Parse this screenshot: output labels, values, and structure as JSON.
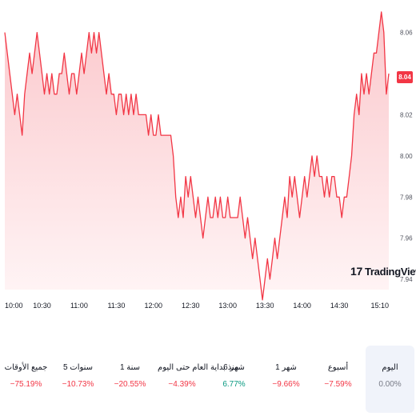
{
  "chart_data": {
    "type": "area",
    "x_tick_labels": [
      "10:00",
      "10:30",
      "11:00",
      "11:30",
      "12:00",
      "12:30",
      "13:00",
      "13:30",
      "14:00",
      "14:30",
      "15:10"
    ],
    "y_tick_labels": [
      "7.94",
      "7.96",
      "7.98",
      "8.00",
      "8.02",
      "8.04",
      "8.06"
    ],
    "ylim": [
      7.935,
      8.068
    ],
    "x_range_minutes": [
      600,
      910
    ],
    "line_color": "#f23645",
    "fill_top_color": "#fbc8cc",
    "fill_bottom_color": "#fff5f6",
    "last_price_label": "8.04",
    "points": [
      [
        600,
        8.06
      ],
      [
        602,
        8.05
      ],
      [
        604,
        8.04
      ],
      [
        606,
        8.03
      ],
      [
        608,
        8.02
      ],
      [
        610,
        8.03
      ],
      [
        612,
        8.02
      ],
      [
        614,
        8.01
      ],
      [
        616,
        8.03
      ],
      [
        618,
        8.04
      ],
      [
        620,
        8.05
      ],
      [
        622,
        8.04
      ],
      [
        624,
        8.05
      ],
      [
        626,
        8.06
      ],
      [
        628,
        8.05
      ],
      [
        630,
        8.04
      ],
      [
        632,
        8.03
      ],
      [
        634,
        8.04
      ],
      [
        636,
        8.03
      ],
      [
        638,
        8.04
      ],
      [
        640,
        8.03
      ],
      [
        642,
        8.03
      ],
      [
        644,
        8.04
      ],
      [
        646,
        8.04
      ],
      [
        648,
        8.05
      ],
      [
        650,
        8.04
      ],
      [
        652,
        8.03
      ],
      [
        654,
        8.04
      ],
      [
        656,
        8.04
      ],
      [
        658,
        8.03
      ],
      [
        660,
        8.04
      ],
      [
        662,
        8.05
      ],
      [
        664,
        8.04
      ],
      [
        666,
        8.05
      ],
      [
        668,
        8.06
      ],
      [
        670,
        8.05
      ],
      [
        672,
        8.06
      ],
      [
        674,
        8.05
      ],
      [
        676,
        8.06
      ],
      [
        678,
        8.05
      ],
      [
        680,
        8.04
      ],
      [
        682,
        8.03
      ],
      [
        684,
        8.04
      ],
      [
        686,
        8.03
      ],
      [
        688,
        8.03
      ],
      [
        690,
        8.02
      ],
      [
        692,
        8.03
      ],
      [
        694,
        8.03
      ],
      [
        696,
        8.02
      ],
      [
        698,
        8.03
      ],
      [
        700,
        8.02
      ],
      [
        702,
        8.03
      ],
      [
        704,
        8.02
      ],
      [
        706,
        8.03
      ],
      [
        708,
        8.02
      ],
      [
        710,
        8.02
      ],
      [
        712,
        8.02
      ],
      [
        714,
        8.02
      ],
      [
        716,
        8.01
      ],
      [
        718,
        8.02
      ],
      [
        720,
        8.01
      ],
      [
        722,
        8.01
      ],
      [
        724,
        8.02
      ],
      [
        726,
        8.01
      ],
      [
        728,
        8.01
      ],
      [
        730,
        8.01
      ],
      [
        732,
        8.01
      ],
      [
        734,
        8.01
      ],
      [
        736,
        8.0
      ],
      [
        738,
        7.98
      ],
      [
        740,
        7.97
      ],
      [
        742,
        7.98
      ],
      [
        744,
        7.97
      ],
      [
        746,
        7.99
      ],
      [
        748,
        7.98
      ],
      [
        750,
        7.99
      ],
      [
        752,
        7.98
      ],
      [
        754,
        7.97
      ],
      [
        756,
        7.98
      ],
      [
        758,
        7.97
      ],
      [
        760,
        7.96
      ],
      [
        762,
        7.97
      ],
      [
        764,
        7.98
      ],
      [
        766,
        7.97
      ],
      [
        768,
        7.97
      ],
      [
        770,
        7.98
      ],
      [
        772,
        7.97
      ],
      [
        774,
        7.98
      ],
      [
        776,
        7.97
      ],
      [
        778,
        7.97
      ],
      [
        780,
        7.98
      ],
      [
        782,
        7.97
      ],
      [
        784,
        7.97
      ],
      [
        786,
        7.97
      ],
      [
        788,
        7.97
      ],
      [
        790,
        7.98
      ],
      [
        792,
        7.97
      ],
      [
        794,
        7.96
      ],
      [
        796,
        7.97
      ],
      [
        798,
        7.96
      ],
      [
        800,
        7.95
      ],
      [
        802,
        7.96
      ],
      [
        804,
        7.95
      ],
      [
        806,
        7.94
      ],
      [
        808,
        7.93
      ],
      [
        810,
        7.94
      ],
      [
        812,
        7.95
      ],
      [
        814,
        7.94
      ],
      [
        816,
        7.95
      ],
      [
        818,
        7.96
      ],
      [
        820,
        7.95
      ],
      [
        822,
        7.96
      ],
      [
        824,
        7.97
      ],
      [
        826,
        7.98
      ],
      [
        828,
        7.97
      ],
      [
        830,
        7.99
      ],
      [
        832,
        7.98
      ],
      [
        834,
        7.99
      ],
      [
        836,
        7.98
      ],
      [
        838,
        7.97
      ],
      [
        840,
        7.98
      ],
      [
        842,
        7.99
      ],
      [
        844,
        7.98
      ],
      [
        846,
        7.99
      ],
      [
        848,
        8.0
      ],
      [
        850,
        7.99
      ],
      [
        852,
        8.0
      ],
      [
        854,
        7.99
      ],
      [
        856,
        7.99
      ],
      [
        858,
        7.98
      ],
      [
        860,
        7.99
      ],
      [
        862,
        7.98
      ],
      [
        864,
        7.99
      ],
      [
        866,
        7.99
      ],
      [
        868,
        7.98
      ],
      [
        870,
        7.98
      ],
      [
        872,
        7.97
      ],
      [
        874,
        7.98
      ],
      [
        876,
        7.98
      ],
      [
        878,
        7.99
      ],
      [
        880,
        8.0
      ],
      [
        882,
        8.02
      ],
      [
        884,
        8.03
      ],
      [
        886,
        8.02
      ],
      [
        888,
        8.04
      ],
      [
        890,
        8.03
      ],
      [
        892,
        8.04
      ],
      [
        894,
        8.03
      ],
      [
        896,
        8.04
      ],
      [
        898,
        8.05
      ],
      [
        900,
        8.05
      ],
      [
        902,
        8.06
      ],
      [
        904,
        8.07
      ],
      [
        906,
        8.06
      ],
      [
        908,
        8.03
      ],
      [
        910,
        8.04
      ]
    ]
  },
  "watermark": "TradingView",
  "watermark_mark": "17",
  "periods": [
    {
      "label": "اليوم",
      "value": "0.00%",
      "tone": "neutral",
      "selected": true
    },
    {
      "label": "أسبوع",
      "value": "−7.59%",
      "tone": "neg",
      "selected": false
    },
    {
      "label": "1 شهر",
      "value": "−9.66%",
      "tone": "neg",
      "selected": false
    },
    {
      "label": "6 شهر",
      "value": "6.77%",
      "tone": "pos",
      "selected": false
    },
    {
      "label": "منذ بداية العام حتى اليوم",
      "value": "−4.39%",
      "tone": "neg",
      "selected": false
    },
    {
      "label": "1 سنة",
      "value": "−20.55%",
      "tone": "neg",
      "selected": false
    },
    {
      "label": "5 سنوات",
      "value": "−10.73%",
      "tone": "neg",
      "selected": false
    },
    {
      "label": "جميع الأوقات",
      "value": "−75.19%",
      "tone": "neg",
      "selected": false
    }
  ]
}
